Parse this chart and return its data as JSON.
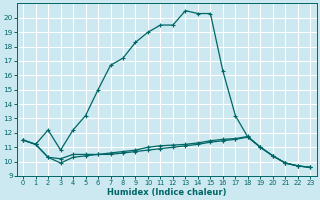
{
  "xlabel": "Humidex (Indice chaleur)",
  "background_color": "#cce8f0",
  "grid_color": "#ffffff",
  "line_color": "#006666",
  "xlim": [
    -0.5,
    23.5
  ],
  "ylim": [
    9,
    21
  ],
  "xticks": [
    0,
    1,
    2,
    3,
    4,
    5,
    6,
    7,
    8,
    9,
    10,
    11,
    12,
    13,
    14,
    15,
    16,
    17,
    18,
    19,
    20,
    21,
    22,
    23
  ],
  "yticks": [
    9,
    10,
    11,
    12,
    13,
    14,
    15,
    16,
    17,
    18,
    19,
    20
  ],
  "x_vals": [
    0,
    1,
    2,
    3,
    4,
    5,
    6,
    7,
    8,
    9,
    10,
    11,
    12,
    13,
    14,
    15,
    16,
    17,
    18,
    19,
    20,
    21,
    22,
    23
  ],
  "series": [
    [
      11.5,
      11.2,
      10.3,
      10.2,
      10.5,
      10.5,
      10.5,
      10.6,
      10.7,
      10.8,
      11.0,
      11.1,
      11.15,
      11.2,
      11.3,
      11.45,
      11.55,
      11.6,
      11.75,
      11.0,
      10.4,
      9.9,
      9.7,
      9.6
    ],
    [
      11.5,
      11.2,
      10.3,
      9.9,
      10.3,
      10.4,
      10.5,
      10.5,
      10.6,
      10.7,
      10.8,
      10.9,
      11.0,
      11.1,
      11.2,
      11.35,
      11.45,
      11.55,
      11.7,
      11.0,
      10.4,
      9.9,
      9.7,
      9.6
    ],
    [
      11.5,
      11.2,
      12.2,
      10.8,
      12.2,
      13.2,
      15.0,
      16.7,
      17.2,
      18.3,
      19.0,
      19.5,
      19.5,
      20.5,
      20.3,
      20.3,
      16.3,
      13.2,
      11.7,
      11.0,
      10.4,
      9.9,
      9.7,
      9.6
    ]
  ]
}
